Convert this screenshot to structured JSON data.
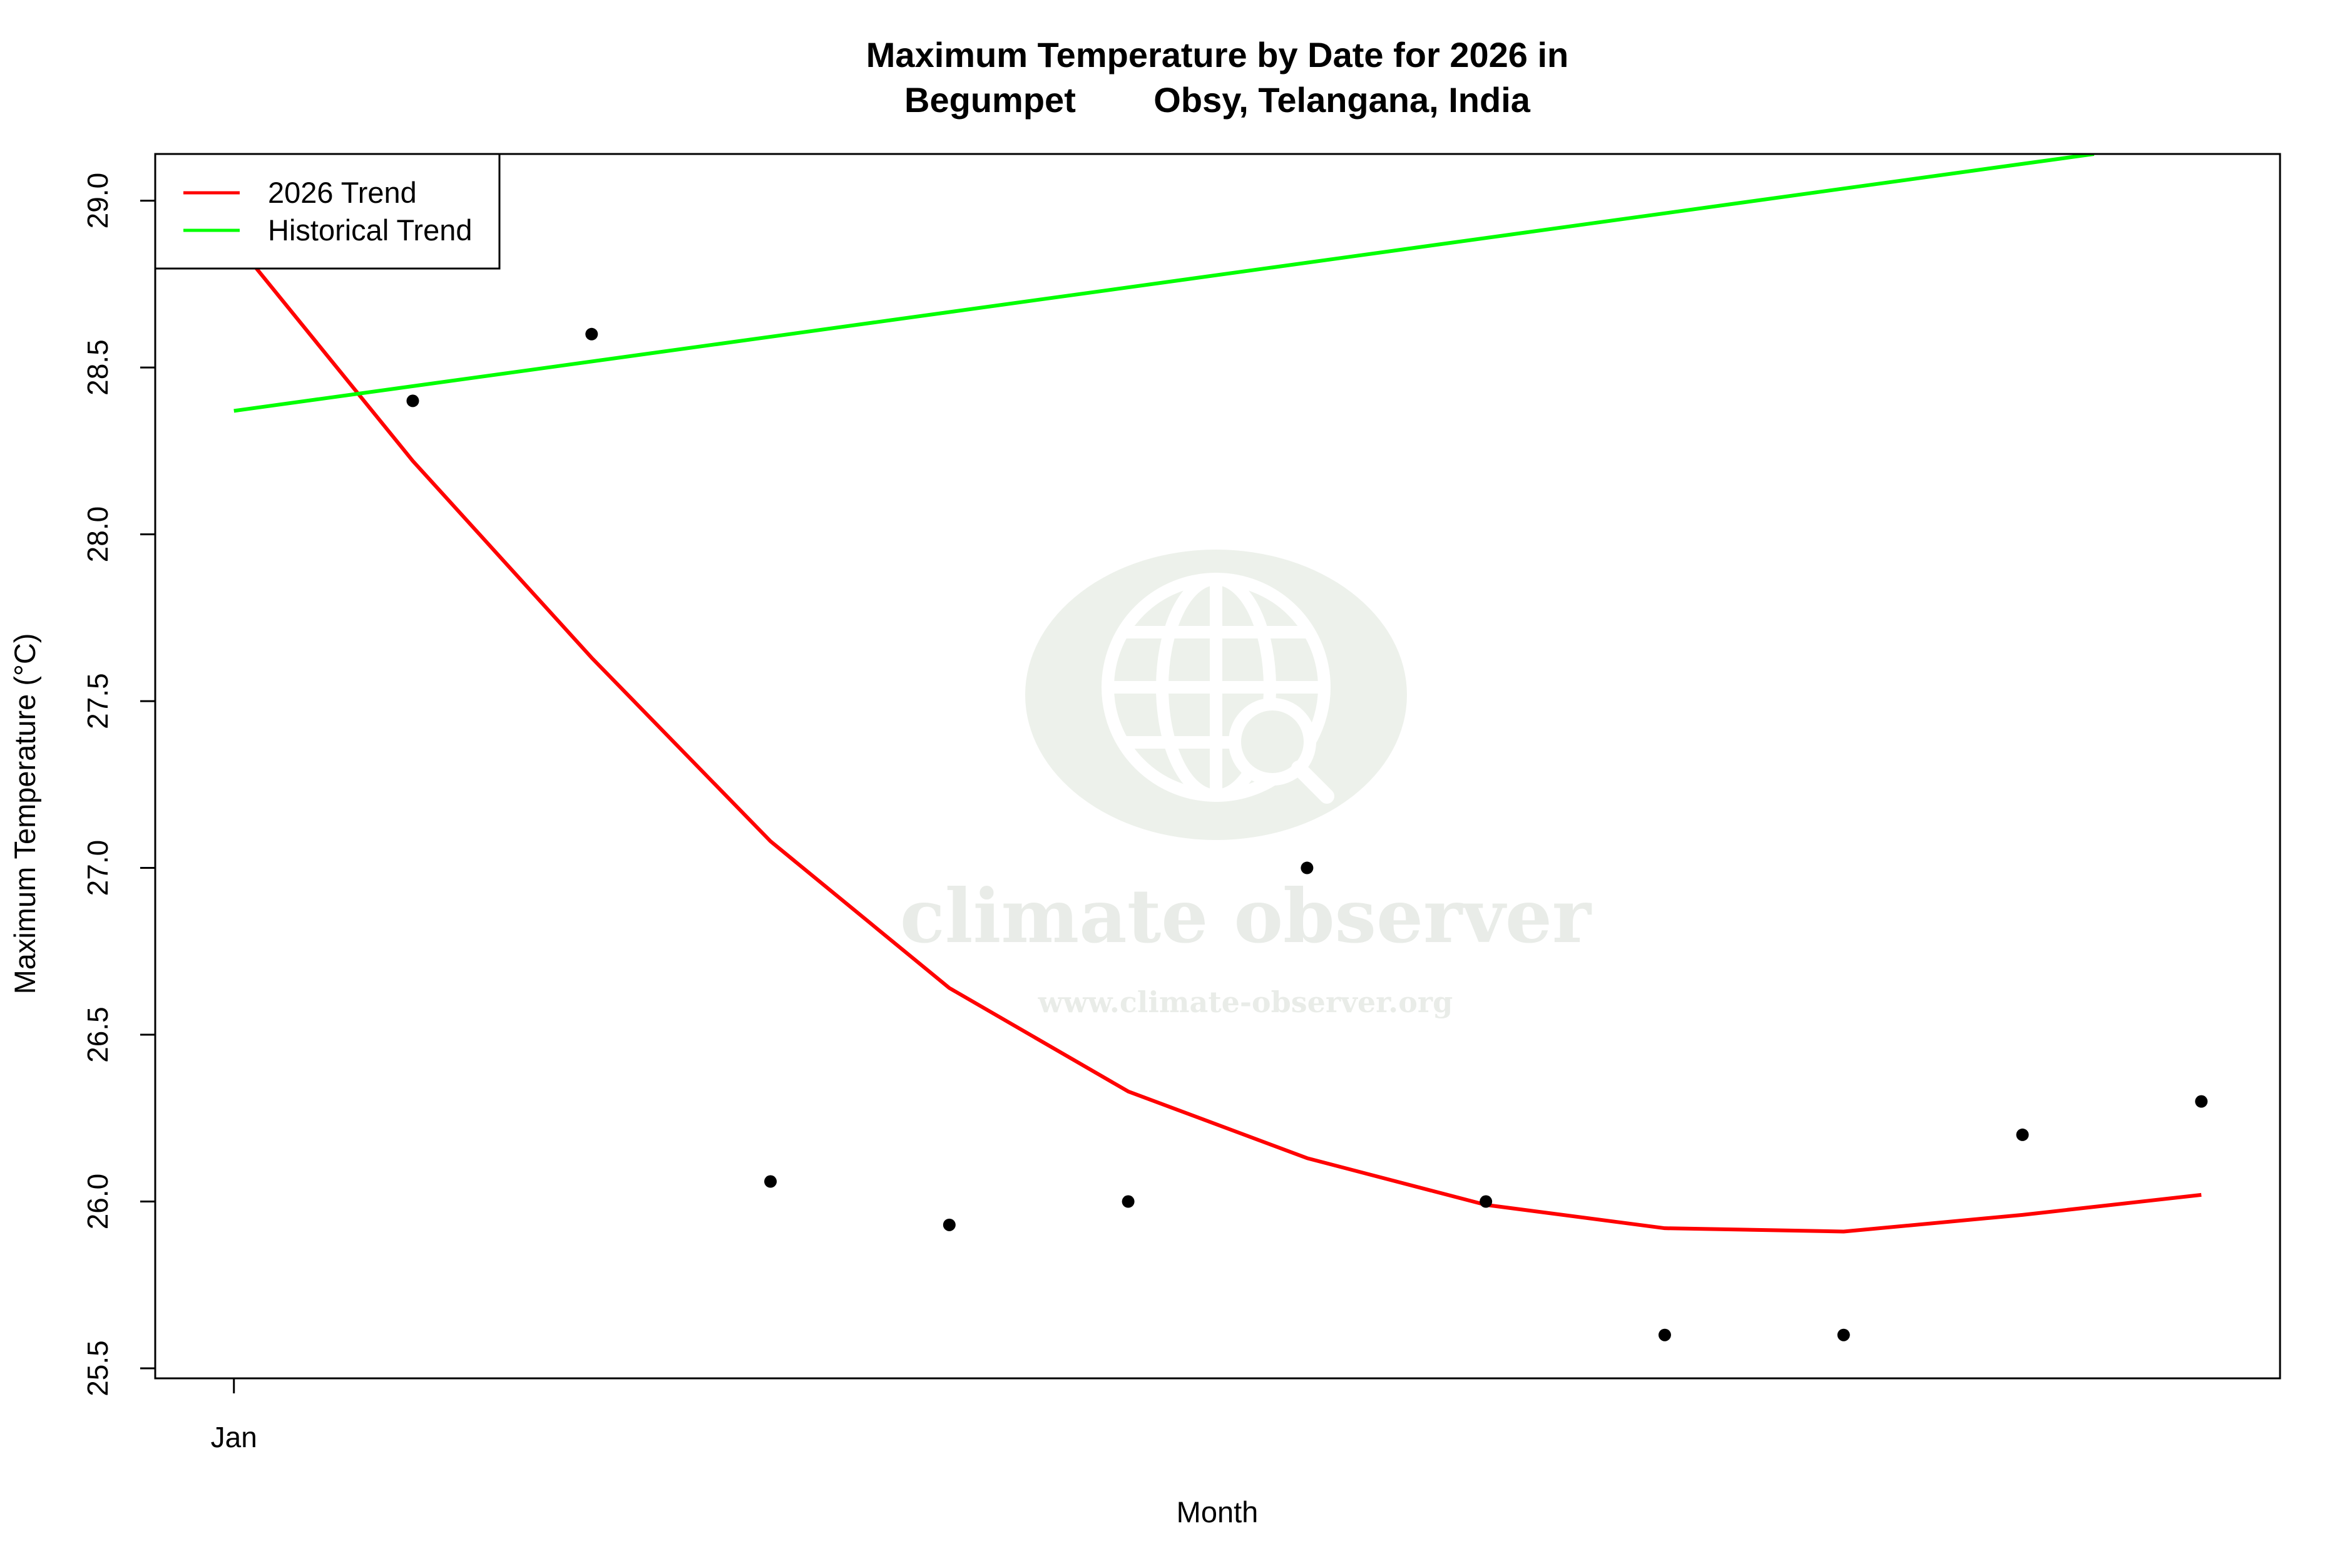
{
  "chart_data": {
    "type": "line",
    "title_line1": "Maximum Temperature by Date for 2026 in",
    "title_line2": "Begumpet        Obsy, Telangana, India",
    "xlabel": "Month",
    "ylabel": "Maximum Temperature (°C)",
    "x_ticks": [
      {
        "value": 1,
        "label": "Jan"
      }
    ],
    "y_ticks": [
      25.5,
      26.0,
      26.5,
      27.0,
      27.5,
      28.0,
      28.5,
      29.0
    ],
    "y_tick_labels": [
      "25.5",
      "26.0",
      "26.5",
      "27.0",
      "27.5",
      "28.0",
      "28.5",
      "29.0"
    ],
    "xlim": [
      0.56,
      12.44
    ],
    "ylim": [
      25.47,
      29.14
    ],
    "grid": false,
    "legend_position": "top-left",
    "points": {
      "color": "#000000",
      "x": [
        2,
        3,
        4,
        5,
        6,
        7,
        8,
        9,
        10,
        11,
        12
      ],
      "y": [
        28.4,
        28.6,
        26.06,
        25.93,
        26.0,
        27.0,
        26.0,
        25.6,
        25.6,
        26.2,
        26.3
      ]
    },
    "series": [
      {
        "name": "2026 Trend",
        "color": "#ff0000",
        "x": [
          1,
          2,
          3,
          4,
          5,
          6,
          7,
          8,
          9,
          10,
          11,
          12
        ],
        "y": [
          28.88,
          28.22,
          27.63,
          27.08,
          26.64,
          26.33,
          26.13,
          25.99,
          25.92,
          25.91,
          25.96,
          26.02
        ]
      },
      {
        "name": "Historical Trend",
        "color": "#00ff00",
        "x": [
          1,
          11.4
        ],
        "y": [
          28.37,
          29.14
        ]
      }
    ]
  },
  "watermark": {
    "name": "climate observer",
    "url": "www.climate-observer.org",
    "icon": "globe-search-icon",
    "color": "#e6ebe4"
  }
}
